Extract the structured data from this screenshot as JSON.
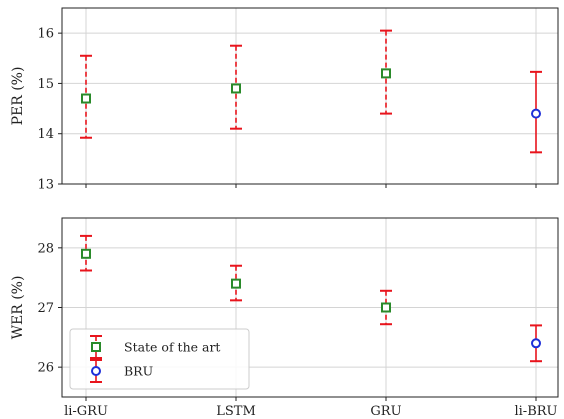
{
  "chart_data": [
    {
      "type": "scatter",
      "ylabel": "PER (%)",
      "ylim": [
        13,
        16.5
      ],
      "yticks": [
        13,
        14,
        15,
        16
      ],
      "categories": [
        "li-GRU",
        "LSTM",
        "GRU",
        "li-BRU"
      ],
      "grid": true,
      "series": [
        {
          "name": "State of the art",
          "marker": "square",
          "color": "#2a8a2a",
          "error_style": "dashed",
          "points": [
            {
              "x": "li-GRU",
              "y": 14.7,
              "low": 13.92,
              "high": 15.55
            },
            {
              "x": "LSTM",
              "y": 14.9,
              "low": 14.1,
              "high": 15.75
            },
            {
              "x": "GRU",
              "y": 15.2,
              "low": 14.4,
              "high": 16.05
            }
          ]
        },
        {
          "name": "BRU",
          "marker": "circle",
          "color": "#1f2fd8",
          "error_style": "solid",
          "points": [
            {
              "x": "li-BRU",
              "y": 14.4,
              "low": 13.63,
              "high": 15.23
            }
          ]
        }
      ]
    },
    {
      "type": "scatter",
      "ylabel": "WER (%)",
      "xlabel": "",
      "ylim": [
        25.5,
        28.5
      ],
      "yticks": [
        26,
        27,
        28
      ],
      "categories": [
        "li-GRU",
        "LSTM",
        "GRU",
        "li-BRU"
      ],
      "grid": true,
      "legend": "lower-left",
      "series": [
        {
          "name": "State of the art",
          "marker": "square",
          "color": "#2a8a2a",
          "error_style": "dashed",
          "points": [
            {
              "x": "li-GRU",
              "y": 27.9,
              "low": 27.62,
              "high": 28.2
            },
            {
              "x": "LSTM",
              "y": 27.4,
              "low": 27.12,
              "high": 27.7
            },
            {
              "x": "GRU",
              "y": 27.0,
              "low": 26.72,
              "high": 27.28
            }
          ]
        },
        {
          "name": "BRU",
          "marker": "circle",
          "color": "#1f2fd8",
          "error_style": "solid",
          "points": [
            {
              "x": "li-BRU",
              "y": 26.4,
              "low": 26.1,
              "high": 26.7
            }
          ]
        }
      ]
    }
  ],
  "error_color": "#e8141c"
}
